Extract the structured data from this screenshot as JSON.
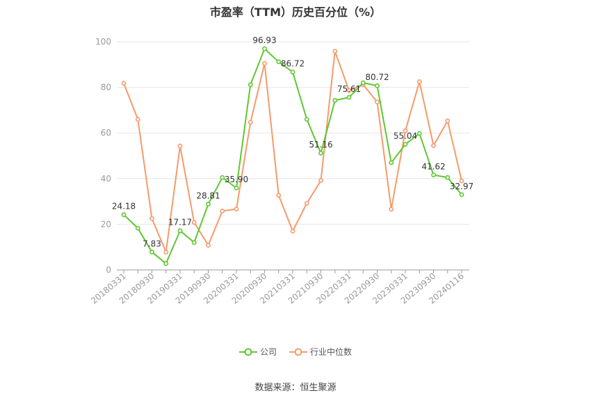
{
  "chart_data": {
    "type": "line",
    "title": "市盈率（TTM）历史百分位（%）",
    "xlabel": "",
    "ylabel": "",
    "ylim": [
      0,
      100
    ],
    "yticks": [
      0,
      20,
      40,
      60,
      80,
      100
    ],
    "grid": true,
    "legend_position": "bottom",
    "x": [
      "20180331",
      "20180630",
      "20180930",
      "20181231",
      "20190331",
      "20190630",
      "20190930",
      "20191231",
      "20200331",
      "20200630",
      "20200930",
      "20201231",
      "20210331",
      "20210630",
      "20210930",
      "20211231",
      "20220331",
      "20220630",
      "20220930",
      "20221231",
      "20230331",
      "20230630",
      "20230930",
      "20231231",
      "20240116"
    ],
    "x_tick_labels": [
      "20180331",
      "20180930",
      "20190331",
      "20190930",
      "20200331",
      "20200930",
      "20210331",
      "20210930",
      "20220331",
      "20220930",
      "20230331",
      "20230930",
      "20240116"
    ],
    "series": [
      {
        "name": "公司",
        "color": "#5ec731",
        "values": [
          24.18,
          18.3,
          7.83,
          2.8,
          17.17,
          12.0,
          28.81,
          40.5,
          35.9,
          81.2,
          96.93,
          91.2,
          86.72,
          66.0,
          51.16,
          74.3,
          75.61,
          82.0,
          80.72,
          47.0,
          55.04,
          59.8,
          41.62,
          40.5,
          32.97
        ],
        "labels": {
          "0": "24.18",
          "2": "7.83",
          "4": "17.17",
          "6": "28.81",
          "8": "35.90",
          "10": "96.93",
          "12": "86.72",
          "14": "51.16",
          "16": "75.61",
          "18": "80.72",
          "20": "55.04",
          "22": "41.62",
          "24": "32.97"
        }
      },
      {
        "name": "行业中位数",
        "color": "#f59a6a",
        "values": [
          81.8,
          66.0,
          22.5,
          7.8,
          54.3,
          20.8,
          10.8,
          25.8,
          26.7,
          64.7,
          90.5,
          32.7,
          17.0,
          29.2,
          39.2,
          95.8,
          78.6,
          81.2,
          73.6,
          26.6,
          61.0,
          82.5,
          54.5,
          65.3,
          39.0
        ]
      }
    ]
  },
  "footer": {
    "source": "数据来源：恒生聚源"
  }
}
